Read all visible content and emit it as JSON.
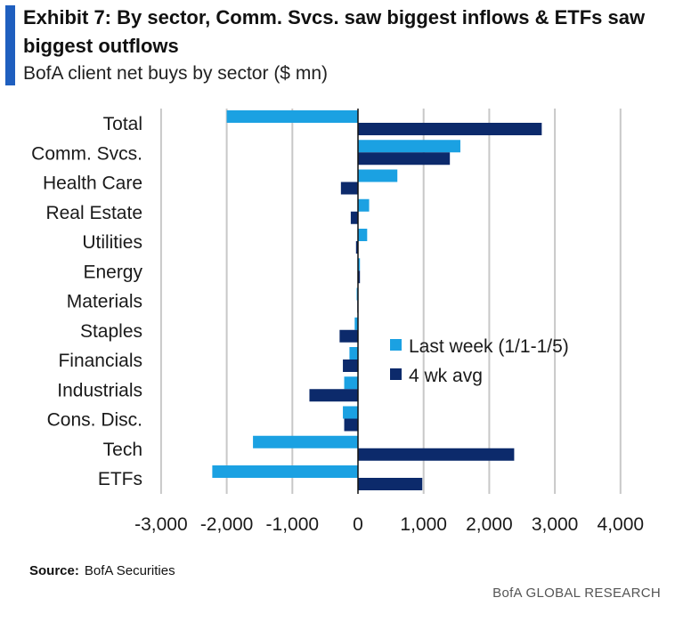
{
  "header": {
    "title": "Exhibit 7: By sector, Comm. Svcs. saw biggest inflows & ETFs saw biggest outflows",
    "subtitle": "BofA client net buys by sector ($ mn)"
  },
  "footer": {
    "source_label": "Source:",
    "source_text": "BofA Securities",
    "brand": "BofA GLOBAL RESEARCH"
  },
  "chart_data": {
    "type": "bar",
    "orientation": "horizontal",
    "title": "",
    "xlabel": "",
    "ylabel": "",
    "categories": [
      "Total",
      "Comm. Svcs.",
      "Health Care",
      "Real Estate",
      "Utilities",
      "Energy",
      "Materials",
      "Staples",
      "Financials",
      "Industrials",
      "Cons. Disc.",
      "Tech",
      "ETFs"
    ],
    "series": [
      {
        "name": "Last week (1/1-1/5)",
        "color": "#1ba1e2",
        "values": [
          -2000,
          1560,
          600,
          170,
          140,
          30,
          -20,
          -50,
          -130,
          -210,
          -230,
          -1600,
          -2220
        ]
      },
      {
        "name": "4 wk avg",
        "color": "#0c2a6b",
        "values": [
          2800,
          1400,
          -260,
          -110,
          -30,
          30,
          -10,
          -280,
          -230,
          -740,
          -210,
          2380,
          980
        ]
      }
    ],
    "xlim": [
      -3000,
      4000
    ],
    "xticks": [
      "-3,000",
      "-2,000",
      "-1,000",
      "0",
      "1,000",
      "2,000",
      "3,000",
      "4,000"
    ],
    "xtick_values": [
      -3000,
      -2000,
      -1000,
      0,
      1000,
      2000,
      3000,
      4000
    ],
    "grid": true,
    "legend_position": "center-right"
  }
}
